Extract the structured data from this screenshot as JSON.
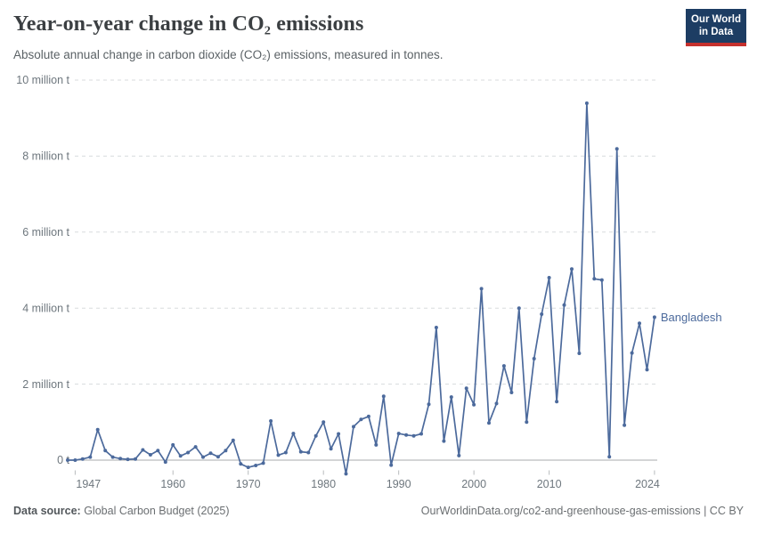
{
  "header": {
    "title": "Year-on-year change in CO₂ emissions",
    "subtitle": "Absolute annual change in carbon dioxide (CO₂) emissions, measured in tonnes.",
    "logo_line1": "Our World",
    "logo_line2": "in Data"
  },
  "footer": {
    "source_label": "Data source:",
    "source_value": " Global Carbon Budget (2025)",
    "citation": "OurWorldinData.org/co2-and-greenhouse-gas-emissions | CC BY"
  },
  "colors": {
    "line": "#4c6a9c",
    "logo_bg": "#1d3d63",
    "logo_stripe": "#c5302d",
    "grid": "#d8dbdd",
    "zero_line": "#a8abad",
    "axis_text": "#6e777e"
  },
  "chart_data": {
    "type": "line",
    "title": "Year-on-year change in CO₂ emissions",
    "entity": "Bangladesh",
    "unit": "million tonnes",
    "ylim": [
      -0.5,
      10
    ],
    "grid": "horizontal-dashed",
    "legend_position": "end-of-line-label",
    "y_ticks": [
      {
        "value": 0,
        "label": "0 t"
      },
      {
        "value": 2,
        "label": "2 million t"
      },
      {
        "value": 4,
        "label": "4 million t"
      },
      {
        "value": 6,
        "label": "6 million t"
      },
      {
        "value": 8,
        "label": "8 million t"
      },
      {
        "value": 10,
        "label": "10 million t"
      }
    ],
    "x_ticks": [
      1947,
      1960,
      1970,
      1980,
      1990,
      2000,
      2010,
      2024
    ],
    "x": [
      1946,
      1947,
      1948,
      1949,
      1950,
      1951,
      1952,
      1953,
      1954,
      1955,
      1956,
      1957,
      1958,
      1959,
      1960,
      1961,
      1962,
      1963,
      1964,
      1965,
      1966,
      1967,
      1968,
      1969,
      1970,
      1971,
      1972,
      1973,
      1974,
      1975,
      1976,
      1977,
      1978,
      1979,
      1980,
      1981,
      1982,
      1983,
      1984,
      1985,
      1986,
      1987,
      1988,
      1989,
      1990,
      1991,
      1992,
      1993,
      1994,
      1995,
      1996,
      1997,
      1998,
      1999,
      2000,
      2001,
      2002,
      2003,
      2004,
      2005,
      2006,
      2007,
      2008,
      2009,
      2010,
      2011,
      2012,
      2013,
      2014,
      2015,
      2016,
      2017,
      2018,
      2019,
      2020,
      2021,
      2022,
      2023,
      2024
    ],
    "values": [
      0,
      0,
      0.03,
      0.08,
      0.8,
      0.25,
      0.08,
      0.04,
      0.02,
      0.03,
      0.27,
      0.14,
      0.25,
      -0.05,
      0.4,
      0.11,
      0.2,
      0.35,
      0.08,
      0.18,
      0.09,
      0.25,
      0.52,
      -0.1,
      -0.19,
      -0.14,
      -0.08,
      1.03,
      0.13,
      0.2,
      0.7,
      0.22,
      0.2,
      0.64,
      1.0,
      0.3,
      0.69,
      -0.36,
      0.88,
      1.07,
      1.15,
      0.4,
      1.68,
      -0.13,
      0.7,
      0.66,
      0.64,
      0.69,
      1.47,
      3.49,
      0.5,
      1.66,
      0.12,
      1.89,
      1.46,
      4.51,
      0.98,
      1.49,
      2.48,
      1.78,
      4.0,
      1.0,
      2.67,
      3.84,
      4.8,
      1.54,
      4.08,
      5.03,
      2.81,
      9.39,
      4.77,
      4.74,
      0.09,
      8.19,
      0.92,
      2.82,
      3.6,
      2.38,
      3.76
    ]
  }
}
